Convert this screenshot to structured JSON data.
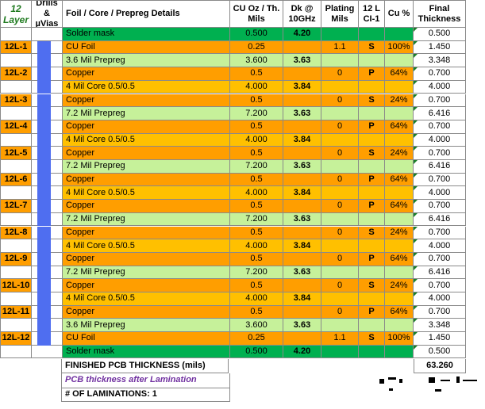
{
  "headers": {
    "layer": "12 Layer",
    "drills": "Drills & µVias",
    "details": "Foil / Core / Prepreg  Details",
    "cu": "CU Oz / Th. Mils",
    "dk": "Dk @ 10GHz",
    "plating": "Plating Mils",
    "ci": "12 L CI-1",
    "cupct": "Cu %",
    "final": "Final Thickness"
  },
  "rows": [
    {
      "layer": "",
      "type": "mask",
      "detail": "Solder mask",
      "cu": "0.500",
      "dk": "4.20",
      "plating": "",
      "ci": "",
      "pct": "",
      "final": "0.500"
    },
    {
      "layer": "12L-1",
      "type": "foil",
      "detail": "CU Foil",
      "cu": "0.25",
      "dk": "",
      "plating": "1.1",
      "ci": "S",
      "pct": "100%",
      "final": "1.450"
    },
    {
      "layer": "",
      "type": "prepreg",
      "detail": "3.6 Mil Prepreg",
      "cu": "3.600",
      "dk": "3.63",
      "plating": "",
      "ci": "",
      "pct": "",
      "final": "3.348"
    },
    {
      "layer": "12L-2",
      "type": "copper",
      "detail": "Copper",
      "cu": "0.5",
      "dk": "",
      "plating": "0",
      "ci": "P",
      "pct": "64%",
      "final": "0.700"
    },
    {
      "layer": "",
      "type": "core",
      "detail": "4 Mil Core 0.5/0.5",
      "cu": "4.000",
      "dk": "3.84",
      "plating": "",
      "ci": "",
      "pct": "",
      "final": "4.000"
    },
    {
      "layer": "12L-3",
      "type": "copper",
      "detail": "Copper",
      "cu": "0.5",
      "dk": "",
      "plating": "0",
      "ci": "S",
      "pct": "24%",
      "final": "0.700"
    },
    {
      "layer": "",
      "type": "prepreg",
      "detail": "7.2 Mil Prepreg",
      "cu": "7.200",
      "dk": "3.63",
      "plating": "",
      "ci": "",
      "pct": "",
      "final": "6.416"
    },
    {
      "layer": "12L-4",
      "type": "copper",
      "detail": "Copper",
      "cu": "0.5",
      "dk": "",
      "plating": "0",
      "ci": "P",
      "pct": "64%",
      "final": "0.700"
    },
    {
      "layer": "",
      "type": "core",
      "detail": "4 Mil Core 0.5/0.5",
      "cu": "4.000",
      "dk": "3.84",
      "plating": "",
      "ci": "",
      "pct": "",
      "final": "4.000"
    },
    {
      "layer": "12L-5",
      "type": "copper",
      "detail": "Copper",
      "cu": "0.5",
      "dk": "",
      "plating": "0",
      "ci": "S",
      "pct": "24%",
      "final": "0.700"
    },
    {
      "layer": "",
      "type": "prepreg",
      "detail": "7.2 Mil Prepreg",
      "cu": "7.200",
      "dk": "3.63",
      "plating": "",
      "ci": "",
      "pct": "",
      "final": "6.416"
    },
    {
      "layer": "12L-6",
      "type": "copper",
      "detail": "Copper",
      "cu": "0.5",
      "dk": "",
      "plating": "0",
      "ci": "P",
      "pct": "64%",
      "final": "0.700"
    },
    {
      "layer": "",
      "type": "core",
      "detail": "4 Mil Core 0.5/0.5",
      "cu": "4.000",
      "dk": "3.84",
      "plating": "",
      "ci": "",
      "pct": "",
      "final": "4.000"
    },
    {
      "layer": "12L-7",
      "type": "copper",
      "detail": "Copper",
      "cu": "0.5",
      "dk": "",
      "plating": "0",
      "ci": "P",
      "pct": "64%",
      "final": "0.700"
    },
    {
      "layer": "",
      "type": "prepreg",
      "detail": "7.2 Mil Prepreg",
      "cu": "7.200",
      "dk": "3.63",
      "plating": "",
      "ci": "",
      "pct": "",
      "final": "6.416"
    },
    {
      "layer": "12L-8",
      "type": "copper",
      "detail": "Copper",
      "cu": "0.5",
      "dk": "",
      "plating": "0",
      "ci": "S",
      "pct": "24%",
      "final": "0.700"
    },
    {
      "layer": "",
      "type": "core",
      "detail": "4 Mil Core 0.5/0.5",
      "cu": "4.000",
      "dk": "3.84",
      "plating": "",
      "ci": "",
      "pct": "",
      "final": "4.000"
    },
    {
      "layer": "12L-9",
      "type": "copper",
      "detail": "Copper",
      "cu": "0.5",
      "dk": "",
      "plating": "0",
      "ci": "P",
      "pct": "64%",
      "final": "0.700"
    },
    {
      "layer": "",
      "type": "prepreg",
      "detail": "7.2 Mil Prepreg",
      "cu": "7.200",
      "dk": "3.63",
      "plating": "",
      "ci": "",
      "pct": "",
      "final": "6.416"
    },
    {
      "layer": "12L-10",
      "type": "copper",
      "detail": "Copper",
      "cu": "0.5",
      "dk": "",
      "plating": "0",
      "ci": "S",
      "pct": "24%",
      "final": "0.700"
    },
    {
      "layer": "",
      "type": "core",
      "detail": "4 Mil Core 0.5/0.5",
      "cu": "4.000",
      "dk": "3.84",
      "plating": "",
      "ci": "",
      "pct": "",
      "final": "4.000"
    },
    {
      "layer": "12L-11",
      "type": "copper",
      "detail": "Copper",
      "cu": "0.5",
      "dk": "",
      "plating": "0",
      "ci": "P",
      "pct": "64%",
      "final": "0.700"
    },
    {
      "layer": "",
      "type": "prepreg",
      "detail": "3.6 Mil Prepreg",
      "cu": "3.600",
      "dk": "3.63",
      "plating": "",
      "ci": "",
      "pct": "",
      "final": "3.348"
    },
    {
      "layer": "12L-12",
      "type": "foil",
      "detail": "CU Foil",
      "cu": "0.25",
      "dk": "",
      "plating": "1.1",
      "ci": "S",
      "pct": "100%",
      "final": "1.450"
    },
    {
      "layer": "",
      "type": "mask",
      "detail": "Solder mask",
      "cu": "0.500",
      "dk": "4.20",
      "plating": "",
      "ci": "",
      "pct": "",
      "final": "0.500"
    }
  ],
  "footer": {
    "finished_label": "FINISHED PCB  THICKNESS (mils)",
    "finished_value": "63.260",
    "after_lamination": "PCB thickness after Lamination",
    "laminations": "# OF LAMINATIONS: 1"
  },
  "colors": {
    "mask": "#00b050",
    "orange": "#ff9e00",
    "light_green": "#c6f19a",
    "yellow": "#ffc000",
    "via_blue": "#4f6ef0"
  }
}
